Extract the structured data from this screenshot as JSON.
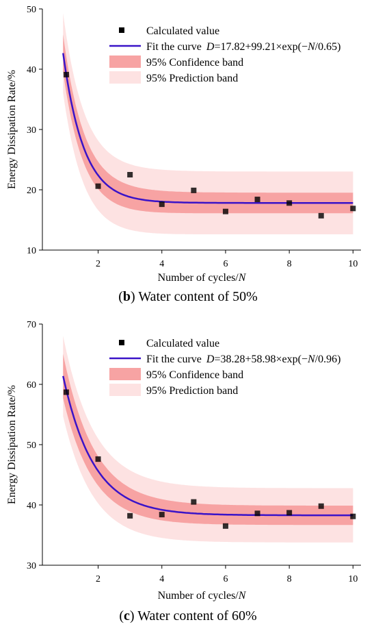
{
  "colors": {
    "fit": "#3a13c8",
    "confidence": "#f7a3a3",
    "prediction": "#fde2e2",
    "point": "#000000"
  },
  "captions": [
    {
      "prefix": "(",
      "letter": "b",
      "suffix": ") Water content of 50%"
    },
    {
      "prefix": "(",
      "letter": "c",
      "suffix": ") Water content of 60%"
    }
  ],
  "chart_data": [
    {
      "type": "scatter",
      "xlabel_main": "Number of cycles/",
      "xlabel_var": "N",
      "ylabel": "Energy Dissipation Rate/%",
      "xlim": [
        0.25,
        10.25
      ],
      "ylim": [
        10,
        50
      ],
      "xticks": [
        2,
        4,
        6,
        8,
        10
      ],
      "yticks": [
        10,
        20,
        30,
        40,
        50
      ],
      "legend_position": "top-right",
      "legend": {
        "points": "Calculated value",
        "fit": "Fit the curve",
        "equation_var": "D",
        "equation_body": "=17.82+99.21×exp(−",
        "equation_var2": "N",
        "equation_tail": "/0.65)",
        "confidence": "95% Confidence band",
        "prediction": "95% Prediction band"
      },
      "fit": {
        "y0": 17.82,
        "A": 99.21,
        "t": 0.65
      },
      "confidence_halfwidth": {
        "base": 1.7,
        "peak": 3.0
      },
      "prediction_halfwidth": {
        "base": 5.2,
        "peak": 6.5
      },
      "x": [
        1,
        2,
        3,
        4,
        5,
        6,
        7,
        8,
        9,
        10
      ],
      "y": [
        39.1,
        20.6,
        22.5,
        17.6,
        19.9,
        16.4,
        18.4,
        17.8,
        15.7,
        16.9
      ]
    },
    {
      "type": "scatter",
      "xlabel_main": "Number of cycles/",
      "xlabel_var": "N",
      "ylabel": "Energy Dissipation Rate/%",
      "xlim": [
        0.25,
        10.25
      ],
      "ylim": [
        30,
        70
      ],
      "xticks": [
        2,
        4,
        6,
        8,
        10
      ],
      "yticks": [
        30,
        40,
        50,
        60,
        70
      ],
      "legend_position": "top-right",
      "legend": {
        "points": "Calculated value",
        "fit": "Fit the curve",
        "equation_var": "D",
        "equation_body": "=38.28+58.98×exp(−",
        "equation_var2": "N",
        "equation_tail": "/0.96)",
        "confidence": "95% Confidence band",
        "prediction": "95% Prediction band"
      },
      "fit": {
        "y0": 38.28,
        "A": 58.98,
        "t": 0.96
      },
      "confidence_halfwidth": {
        "base": 1.6,
        "peak": 3.5
      },
      "prediction_halfwidth": {
        "base": 4.5,
        "peak": 6.5
      },
      "x": [
        1,
        2,
        3,
        4,
        5,
        6,
        7,
        8,
        9,
        10
      ],
      "y": [
        58.7,
        47.6,
        38.2,
        38.4,
        40.5,
        36.5,
        38.6,
        38.7,
        39.8,
        38.1
      ]
    }
  ]
}
